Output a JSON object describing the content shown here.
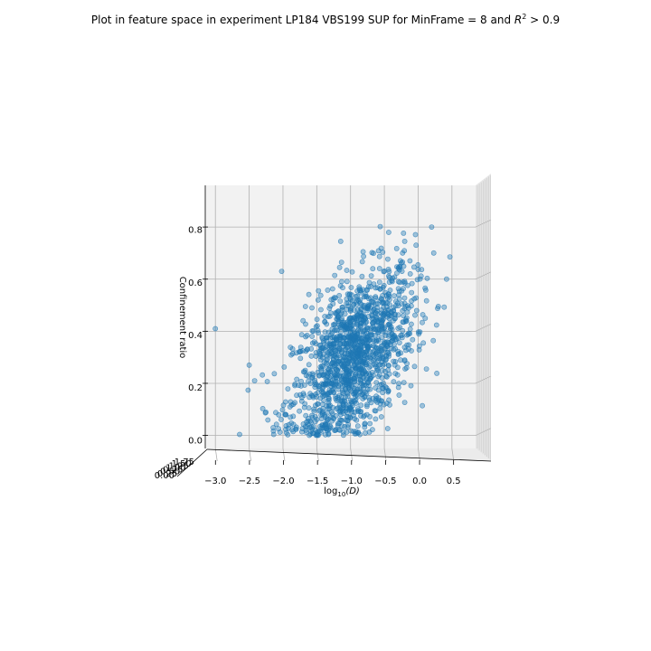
{
  "chart_data": {
    "type": "scatter",
    "title_prefix": "Plot in feature space in experiment LP184 VBS199 SUP for MinFrame = 8 and ",
    "title_r": "R",
    "title_sup": "2",
    "title_suffix": " > 0.9",
    "xlabel": "log",
    "xlabel_sub": "10",
    "xlabel_rest": "(D)",
    "ylabel": "Confinement ratio",
    "xlim": [
      -3.15,
      0.85
    ],
    "ylim": [
      -0.05,
      0.96
    ],
    "x_ticks": [
      "−3.0",
      "−2.5",
      "−2.0",
      "−1.5",
      "−1.0",
      "−0.5",
      "0.0",
      "0.5"
    ],
    "x_tick_values": [
      -3.0,
      -2.5,
      -2.0,
      -1.5,
      -1.0,
      -0.5,
      0.0,
      0.5
    ],
    "y_ticks": [
      "0.0",
      "0.2",
      "0.4",
      "0.6",
      "0.8"
    ],
    "y_tick_values": [
      0.0,
      0.2,
      0.4,
      0.6,
      0.8
    ],
    "z_ticks": [
      "0.00",
      "0.25",
      "0.50",
      "0.75",
      "1.00",
      "1.25",
      "1.50",
      "1.75"
    ],
    "series": [
      {
        "color": "#1f77b4",
        "alpha": 0.4,
        "approx_point_count": 1500,
        "x_mean": -0.95,
        "x_std": 0.45,
        "y_mean": 0.3,
        "y_std": 0.17,
        "correlation": 0.5,
        "notable_outliers": [
          [
            -3.0,
            0.41
          ],
          [
            -2.02,
            0.63
          ],
          [
            -2.5,
            0.27
          ],
          [
            -2.42,
            0.21
          ],
          [
            0.2,
            0.8
          ],
          [
            0.42,
            0.6
          ]
        ]
      }
    ],
    "grid": true,
    "pane_color": "#f2f2f2"
  }
}
